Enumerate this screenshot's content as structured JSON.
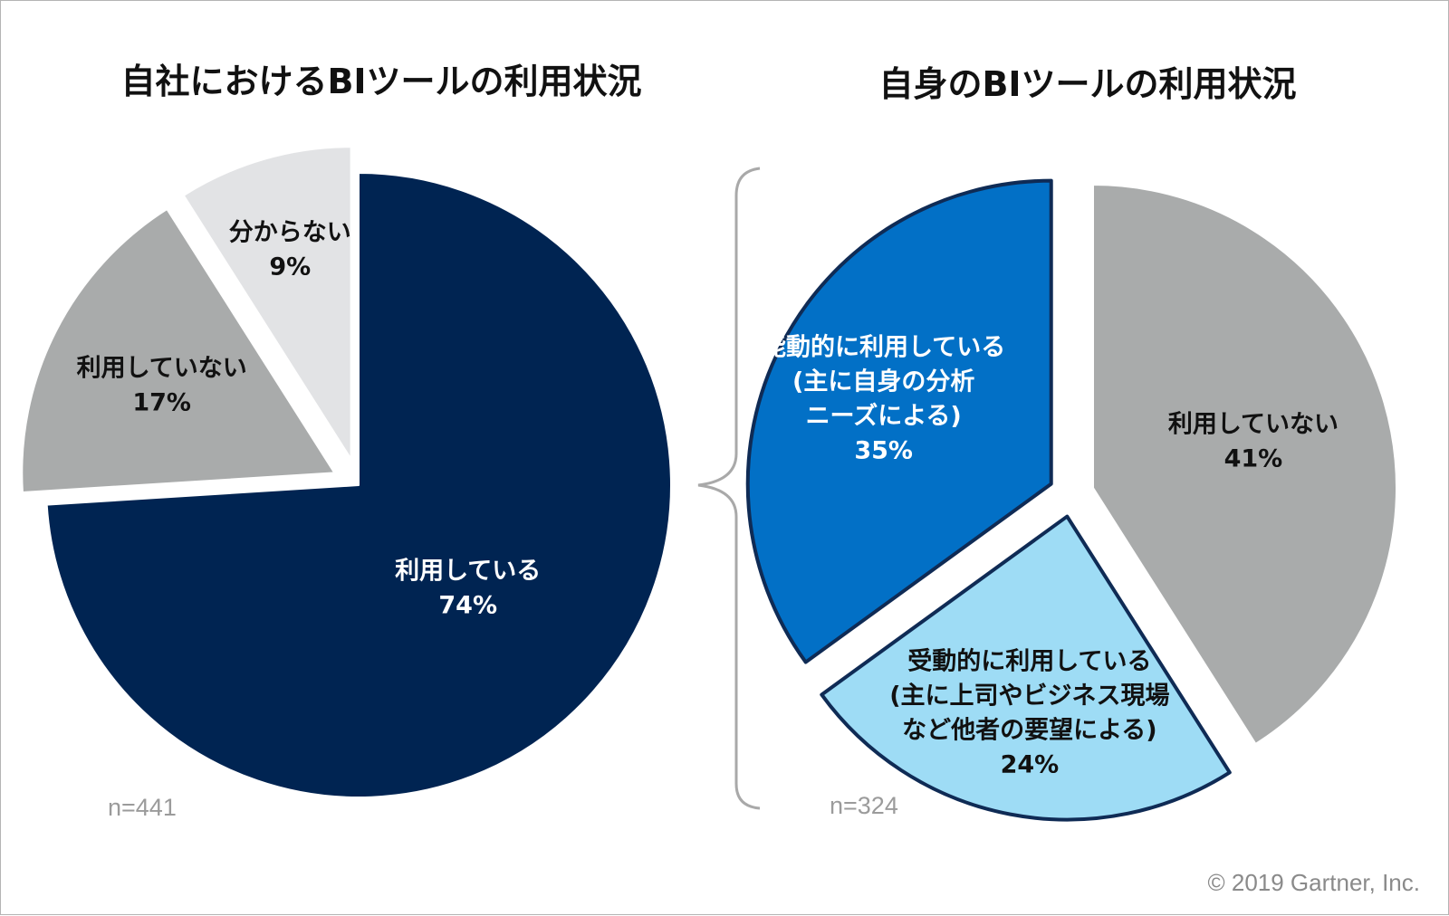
{
  "chart_data": [
    {
      "type": "pie",
      "title": "自社におけるBIツールの利用状況",
      "sample_size": "n=441",
      "slices": [
        {
          "label_lines": [
            "利用している"
          ],
          "value": 74,
          "value_label": "74%",
          "color": "#002452",
          "text_color": "#ffffff",
          "exploded": false
        },
        {
          "label_lines": [
            "利用していない"
          ],
          "value": 17,
          "value_label": "17%",
          "color": "#a9abab",
          "text_color": "#111111",
          "exploded": true
        },
        {
          "label_lines": [
            "分からない"
          ],
          "value": 9,
          "value_label": "9%",
          "color": "#e2e3e5",
          "text_color": "#111111",
          "exploded": true
        }
      ]
    },
    {
      "type": "pie",
      "title": "自身のBIツールの利用状況",
      "sample_size": "n=324",
      "slices": [
        {
          "label_lines": [
            "利用していない"
          ],
          "value": 41,
          "value_label": "41%",
          "color": "#a9abab",
          "text_color": "#111111",
          "exploded": true
        },
        {
          "label_lines": [
            "受動的に利用している",
            "(主に上司やビジネス現場",
            "など他者の要望による)"
          ],
          "value": 24,
          "value_label": "24%",
          "color": "#9edcf5",
          "text_color": "#111111",
          "exploded": true
        },
        {
          "label_lines": [
            "能動的に利用している",
            "(主に自身の分析",
            "ニーズによる)"
          ],
          "value": 35,
          "value_label": "35%",
          "color": "#0270c6",
          "text_color": "#ffffff",
          "exploded": true
        }
      ]
    }
  ],
  "footer": {
    "copyright": "© 2019 Gartner, Inc."
  }
}
